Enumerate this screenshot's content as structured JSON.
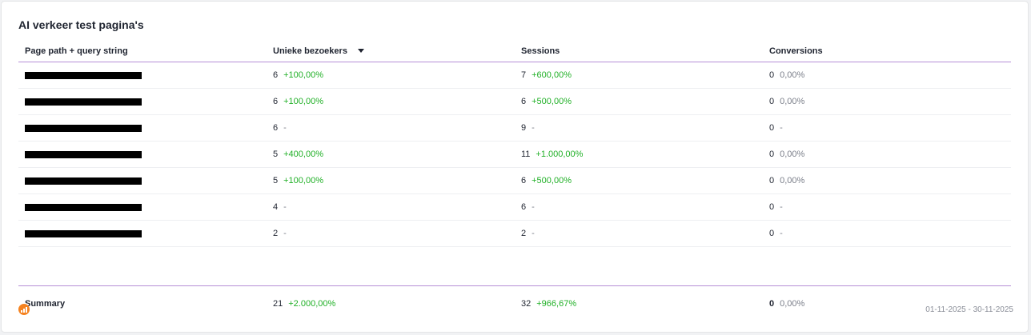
{
  "widget": {
    "title": "AI verkeer test pagina's",
    "date_range": "01-11-2025 - 30-11-2025",
    "logo_icon": "analytics-bar-icon",
    "colors": {
      "positive": "#21b027",
      "neutral": "#7b7f8a",
      "accent": "#b68fd6",
      "logo": "#f5821f"
    }
  },
  "table": {
    "columns": [
      {
        "label": "Page path + query string"
      },
      {
        "label": "Unieke bezoekers",
        "sort_icon": "caret-down-icon"
      },
      {
        "label": "Sessions"
      },
      {
        "label": "Conversions"
      }
    ],
    "rows": [
      {
        "users": "6",
        "users_change": "+100,00%",
        "sessions": "7",
        "sessions_change": "+600,00%",
        "conversions": "0",
        "conversions_change": "0,00%"
      },
      {
        "users": "6",
        "users_change": "+100,00%",
        "sessions": "6",
        "sessions_change": "+500,00%",
        "conversions": "0",
        "conversions_change": "0,00%"
      },
      {
        "users": "6",
        "users_change": "-",
        "sessions": "9",
        "sessions_change": "-",
        "conversions": "0",
        "conversions_change": "-"
      },
      {
        "users": "5",
        "users_change": "+400,00%",
        "sessions": "11",
        "sessions_change": "+1.000,00%",
        "conversions": "0",
        "conversions_change": "0,00%"
      },
      {
        "users": "5",
        "users_change": "+100,00%",
        "sessions": "6",
        "sessions_change": "+500,00%",
        "conversions": "0",
        "conversions_change": "0,00%"
      },
      {
        "users": "4",
        "users_change": "-",
        "sessions": "6",
        "sessions_change": "-",
        "conversions": "0",
        "conversions_change": "-"
      },
      {
        "users": "2",
        "users_change": "-",
        "sessions": "2",
        "sessions_change": "-",
        "conversions": "0",
        "conversions_change": "-"
      }
    ],
    "summary": {
      "label": "Summary",
      "users": "21",
      "users_change": "+2.000,00%",
      "sessions": "32",
      "sessions_change": "+966,67%",
      "conversions": "0",
      "conversions_change": "0,00%"
    }
  }
}
